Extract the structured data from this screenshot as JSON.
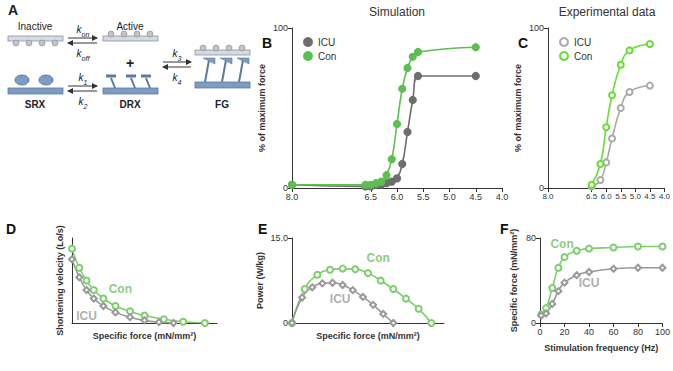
{
  "diagram": {
    "label": "A",
    "states": {
      "inactive": "Inactive",
      "active": "Active",
      "srx": "SRX",
      "drx": "DRX",
      "fg": "FG"
    },
    "rates": {
      "on": {
        "base": "k",
        "sub": "on"
      },
      "off": {
        "base": "k",
        "sub": "off"
      },
      "k1": {
        "base": "k",
        "sub": "1"
      },
      "k2": {
        "base": "k",
        "sub": "2"
      },
      "k3": {
        "base": "k",
        "sub": "3"
      },
      "k4": {
        "base": "k",
        "sub": "4"
      }
    },
    "plus": "+"
  },
  "chart_data": [
    {
      "label": "B",
      "type": "line",
      "title": "Simulation",
      "ylabel": "% of maximum force",
      "xlim": [
        8,
        4
      ],
      "xticks": [
        {
          "value": 8,
          "label": "8.0"
        },
        {
          "value": 6.5,
          "label": "6.5"
        },
        {
          "value": 6,
          "label": "6.0"
        },
        {
          "value": 5.5,
          "label": "5.5"
        },
        {
          "value": 5,
          "label": "5.0"
        },
        {
          "value": 4.5,
          "label": "4.5"
        },
        {
          "value": 4,
          "label": "4.0"
        }
      ],
      "ylim": [
        0,
        100
      ],
      "yticks": [
        0,
        100
      ],
      "grid": false,
      "legend": "upper left",
      "series": [
        {
          "name": "ICU",
          "color": "#6e6e6e",
          "marker": "circle",
          "line_style": "solid",
          "x": [
            8.0,
            6.6,
            6.5,
            6.4,
            6.3,
            6.2,
            6.1,
            6.0,
            5.9,
            5.8,
            5.7,
            5.6,
            4.5
          ],
          "values": [
            2,
            1,
            1,
            2,
            2,
            3,
            4,
            6,
            15,
            35,
            55,
            70,
            70
          ]
        },
        {
          "name": "Con",
          "color": "#5cbf50",
          "marker": "circle",
          "line_style": "solid",
          "x": [
            8.0,
            6.6,
            6.5,
            6.4,
            6.3,
            6.2,
            6.1,
            6.0,
            5.9,
            5.8,
            5.7,
            5.6,
            4.5
          ],
          "values": [
            2,
            2,
            2,
            3,
            4,
            8,
            18,
            40,
            62,
            75,
            82,
            85,
            88
          ]
        }
      ]
    },
    {
      "label": "C",
      "type": "line",
      "title": "Experimental data",
      "ylabel": "% of maximum force",
      "xlim": [
        8,
        4
      ],
      "xticks": [
        {
          "value": 8,
          "label": "8.0"
        },
        {
          "value": 6.5,
          "label": "6.5"
        },
        {
          "value": 6,
          "label": "6.0"
        },
        {
          "value": 5.5,
          "label": "5.5"
        },
        {
          "value": 5,
          "label": "5.0"
        },
        {
          "value": 4.5,
          "label": "4.5"
        },
        {
          "value": 4,
          "label": "4.0"
        }
      ],
      "ylim": [
        0,
        100
      ],
      "yticks": [
        0,
        100
      ],
      "grid": false,
      "legend": "upper left",
      "series": [
        {
          "name": "ICU",
          "color": "#aaaaaa",
          "marker": "emptyCircle",
          "line_style": "solid",
          "x": [
            6.5,
            6.2,
            6.0,
            5.8,
            5.5,
            5.2,
            4.5
          ],
          "values": [
            1,
            5,
            16,
            31,
            50,
            60,
            64
          ]
        },
        {
          "name": "Con",
          "color": "#66dd33",
          "marker": "emptyCircle",
          "line_style": "solid",
          "x": [
            6.5,
            6.2,
            6.0,
            5.8,
            5.5,
            5.2,
            4.5
          ],
          "values": [
            2,
            15,
            38,
            58,
            77,
            86,
            90
          ]
        }
      ]
    },
    {
      "label": "D",
      "type": "line",
      "xlabel": "Specific force (mN/mm²)",
      "ylabel": "Shortening velocity (Lo/s)",
      "xlim": [
        0,
        60
      ],
      "xticks": [],
      "ylim": [
        0,
        8
      ],
      "yticks": [],
      "grid": false,
      "tick_labels": false,
      "series": [
        {
          "name": "Con",
          "color": "#7ccf6a",
          "marker": "emptyCircle",
          "line_style": "solid",
          "x": [
            0,
            3,
            6,
            9,
            13,
            18,
            24,
            30,
            38,
            46,
            55
          ],
          "values": [
            7.0,
            5.2,
            4.0,
            3.1,
            2.3,
            1.6,
            1.1,
            0.7,
            0.35,
            0.12,
            0
          ]
        },
        {
          "name": "ICU",
          "color": "#999999",
          "marker": "emptyDiamond",
          "line_style": "solid",
          "x": [
            0,
            3,
            6,
            9,
            13,
            18,
            24,
            30,
            36,
            42
          ],
          "values": [
            6.0,
            4.3,
            3.1,
            2.3,
            1.6,
            1.0,
            0.55,
            0.25,
            0.08,
            0
          ]
        }
      ],
      "annotations": [
        {
          "text": "Con",
          "x": 20,
          "y": 3.2,
          "color": "#6cbf5c"
        },
        {
          "text": "ICU",
          "x": 6,
          "y": 0.7,
          "color": "#999999"
        }
      ]
    },
    {
      "label": "E",
      "type": "line",
      "xlabel": "Specific force (mN/mm²)",
      "ylabel": "Power (W/kg)",
      "xlim": [
        0,
        60
      ],
      "xticks": [],
      "ylim": [
        0,
        15
      ],
      "yticks": [
        0,
        {
          "value": 15,
          "label": "15.0"
        }
      ],
      "grid": false,
      "tick_labels": "y",
      "series": [
        {
          "name": "Con",
          "color": "#7ccf6a",
          "marker": "emptyCircle",
          "line_style": "solid",
          "x": [
            0,
            5,
            10,
            15,
            20,
            25,
            30,
            35,
            40,
            45,
            50,
            55
          ],
          "values": [
            0,
            6,
            8.5,
            9.4,
            9.6,
            9.5,
            8.8,
            7.5,
            6,
            4.3,
            2.5,
            0
          ]
        },
        {
          "name": "ICU",
          "color": "#999999",
          "marker": "emptyDiamond",
          "line_style": "solid",
          "x": [
            0,
            4,
            8,
            12,
            16,
            20,
            24,
            28,
            32,
            36,
            40
          ],
          "values": [
            0,
            4.5,
            6.3,
            7.0,
            7.1,
            6.7,
            5.8,
            4.6,
            3.2,
            1.6,
            0
          ]
        }
      ],
      "annotations": [
        {
          "text": "Con",
          "x": 34,
          "y": 11.5,
          "color": "#6cbf5c"
        },
        {
          "text": "ICU",
          "x": 19,
          "y": 4.2,
          "color": "#999999"
        }
      ]
    },
    {
      "label": "F",
      "type": "line",
      "xlabel": "Stimulation frequency (Hz)",
      "ylabel": "Specific force (mN/mm²)",
      "xlim": [
        0,
        100
      ],
      "xticks": [
        0,
        20,
        40,
        60,
        80,
        100
      ],
      "ylim": [
        0,
        80
      ],
      "yticks": [
        0,
        80
      ],
      "grid": false,
      "series": [
        {
          "name": "Con",
          "color": "#7ccf6a",
          "marker": "emptyCircle",
          "line_style": "solid",
          "x": [
            1,
            5,
            10,
            15,
            20,
            30,
            40,
            60,
            80,
            100
          ],
          "values": [
            8,
            14,
            33,
            52,
            62,
            68,
            70,
            71,
            72,
            72
          ]
        },
        {
          "name": "ICU",
          "color": "#999999",
          "marker": "emptyDiamond",
          "line_style": "solid",
          "x": [
            1,
            5,
            10,
            15,
            20,
            30,
            40,
            60,
            80,
            100
          ],
          "values": [
            7,
            9,
            18,
            30,
            38,
            45,
            48,
            51,
            52,
            52
          ]
        }
      ],
      "annotations": [
        {
          "text": "Con",
          "x": 18,
          "y": 74,
          "color": "#6cbf5c"
        },
        {
          "text": "ICU",
          "x": 40,
          "y": 38,
          "color": "#999999"
        }
      ]
    }
  ]
}
